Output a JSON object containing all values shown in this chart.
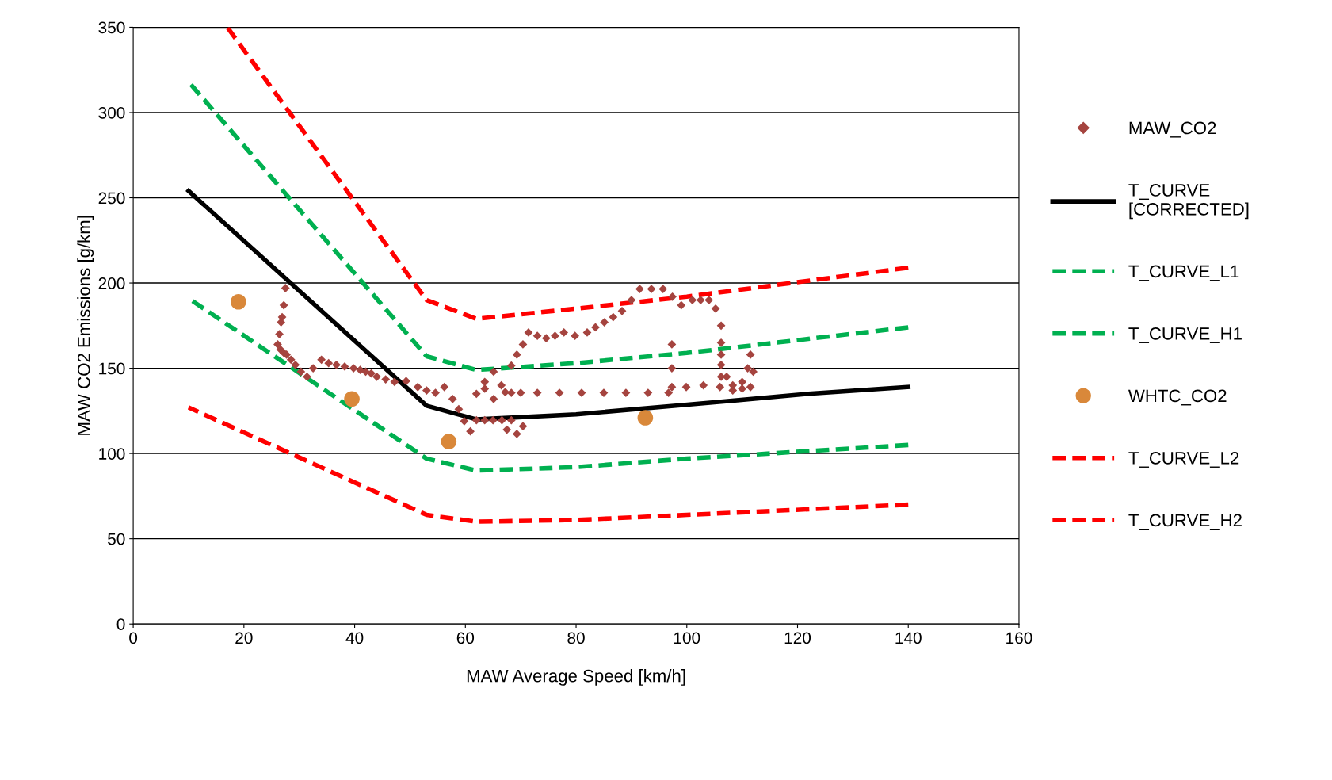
{
  "chart_data": {
    "type": "line",
    "xlabel": "MAW Average Speed [km/h]",
    "ylabel": "MAW CO2 Emissions [g/km]",
    "xlim": [
      0,
      160
    ],
    "xticks": [
      0,
      20,
      40,
      60,
      80,
      100,
      120,
      140,
      160
    ],
    "ylim": [
      0,
      350
    ],
    "yticks": [
      0,
      50,
      100,
      150,
      200,
      250,
      300,
      350
    ],
    "grid": "y",
    "legend": "right",
    "series": [
      {
        "name": "MAW_CO2",
        "type": "scatter",
        "marker": "diamond",
        "color": "#a5443f",
        "x": [
          27.5,
          27.2,
          26.9,
          26.7,
          26.4,
          26.1,
          26.6,
          27.2,
          27.7,
          28.5,
          29.3,
          30.3,
          31.4,
          32.5,
          34,
          35.3,
          36.7,
          38.2,
          39.8,
          41,
          42,
          43,
          44,
          45.6,
          47.2,
          49.3,
          51.4,
          53,
          54.6,
          56.2,
          57.7,
          58.8,
          59.8,
          60.9,
          62,
          63.5,
          65,
          66.6,
          68.3,
          70.4,
          69.3,
          67.5,
          65.1,
          63.5,
          62,
          63.5,
          65.1,
          66.5,
          67.2,
          68.3,
          69.3,
          70.4,
          71.4,
          73,
          74.6,
          76.2,
          77.8,
          79.8,
          82,
          83.5,
          85.1,
          86.7,
          88.3,
          90,
          91.5,
          93.6,
          95.7,
          97.4,
          99,
          101,
          102.5,
          104,
          105.2,
          106.2,
          106.2,
          106.2,
          106.2,
          106.2,
          107.2,
          108.3,
          110,
          111.5,
          112,
          111.5,
          111,
          110,
          108.3,
          106,
          103,
          99.9,
          97.3,
          97.3,
          97.3,
          96.7,
          93,
          89,
          85,
          81,
          77,
          73,
          70,
          68.3
        ],
        "values": [
          197,
          187,
          180,
          177,
          170,
          164,
          161,
          159,
          158,
          155,
          152,
          148,
          145,
          150,
          155,
          153,
          152,
          151,
          150,
          149,
          148,
          147,
          145,
          143.5,
          142,
          142.5,
          139,
          137,
          135.6,
          139,
          132,
          126,
          119,
          113,
          119.5,
          119.5,
          119.5,
          119.5,
          119.5,
          116,
          111.5,
          114,
          132,
          138,
          135,
          142,
          148,
          140,
          136,
          151.6,
          158,
          164,
          171,
          169,
          167.6,
          169,
          171,
          169,
          171,
          174,
          177,
          180,
          183.6,
          190,
          196.5,
          196.5,
          196.5,
          192,
          187,
          190,
          190,
          190,
          185,
          175,
          165,
          158,
          152,
          145,
          145,
          137,
          138,
          139,
          148,
          158,
          150,
          142,
          140,
          139,
          140,
          139,
          164,
          150,
          139,
          135.6,
          135.6,
          135.6,
          135.6,
          135.6,
          135.6,
          135.6,
          135.6,
          135.6
        ]
      },
      {
        "name": "T_CURVE\n[CORRECTED]",
        "color": "#000000",
        "line_style": "solid",
        "x": [
          10,
          53,
          62,
          80,
          105,
          122,
          140
        ],
        "values": [
          254,
          128,
          120,
          123,
          130,
          135,
          139
        ]
      },
      {
        "name": "T_CURVE_L1",
        "color": "#00b050",
        "line_style": "dashed",
        "x": [
          10,
          53,
          62,
          80,
          100,
          140
        ],
        "values": [
          191,
          97,
          90,
          92,
          97,
          105
        ]
      },
      {
        "name": "T_CURVE_H1",
        "color": "#00b050",
        "line_style": "dashed",
        "x": [
          10,
          53,
          62,
          80,
          100,
          140
        ],
        "values": [
          318,
          157,
          149,
          153,
          159,
          174
        ]
      },
      {
        "name": "WHTC_CO2",
        "type": "scatter",
        "marker": "circle",
        "color": "#d9883a",
        "x": [
          19,
          39.5,
          57,
          92.5
        ],
        "values": [
          189,
          132,
          107,
          121
        ]
      },
      {
        "name": "T_CURVE_L2",
        "color": "#ff0000",
        "line_style": "dashed",
        "x": [
          10,
          53,
          62,
          80,
          100,
          140
        ],
        "values": [
          127,
          64,
          60,
          61,
          64,
          70
        ]
      },
      {
        "name": "T_CURVE_H2",
        "color": "#ff0000",
        "line_style": "dashed",
        "x": [
          17,
          53,
          62,
          80,
          100,
          140
        ],
        "values": [
          350,
          190,
          179,
          185,
          192,
          209
        ]
      }
    ]
  }
}
